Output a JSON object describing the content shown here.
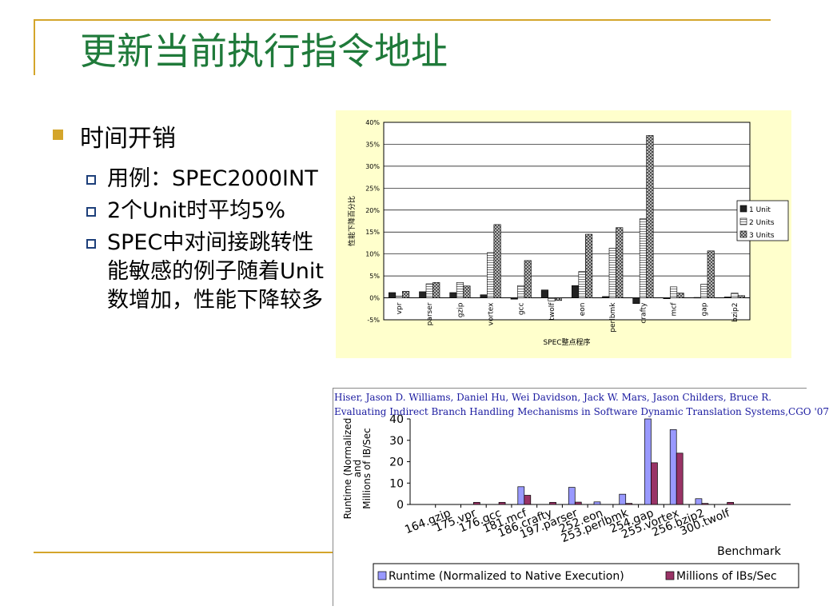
{
  "slide": {
    "title": "更新当前执行指令地址",
    "bullet_main": "时间开销",
    "sub_bullets": [
      "用例：SPEC2000INT",
      "2个Unit时平均5%",
      "SPEC中对间接跳转性能敏感的例子随着Unit数增加，性能下降较多"
    ],
    "citation": [
      "Hiser, Jason D.   Williams, Daniel   Hu, Wei   Davidson, Jack W.   Mars, Jason   Childers, Bruce R.",
      "Evaluating Indirect Branch Handling Mechanisms in Software Dynamic Translation Systems,CGO '07"
    ]
  },
  "colors": {
    "title": "#1f7a3a",
    "accent_rule": "#d4a52b",
    "runtime": "#9999ff",
    "ibs": "#993366"
  },
  "chart_data": [
    {
      "type": "bar",
      "ylabel": "性能下降百分比",
      "xlabel": "SPEC整点程序",
      "ylim": [
        -5,
        40
      ],
      "yticks": [
        "40%",
        "35%",
        "30%",
        "25%",
        "20%",
        "15%",
        "10%",
        "5%",
        "0%",
        "-5%"
      ],
      "categories": [
        "vpr",
        "parser",
        "gzip",
        "vortex",
        "gcc",
        "twolf",
        "eon",
        "perlbmk",
        "crafty",
        "mcf",
        "gap",
        "bzip2"
      ],
      "series": [
        {
          "name": "1 Unit",
          "values": [
            1.2,
            1.4,
            1.2,
            0.7,
            -0.3,
            1.8,
            2.8,
            0.3,
            -1.3,
            -0.2,
            0.1,
            0.2
          ]
        },
        {
          "name": "2 Units",
          "values": [
            0.4,
            3.2,
            3.5,
            10.3,
            2.8,
            -0.7,
            6.0,
            11.3,
            18.0,
            2.5,
            3.1,
            1.1
          ]
        },
        {
          "name": "3 Units",
          "values": [
            1.5,
            3.5,
            2.7,
            16.7,
            8.5,
            -0.6,
            14.5,
            16.0,
            37.0,
            1.1,
            10.7,
            0.5
          ]
        }
      ],
      "legend": "right"
    },
    {
      "type": "bar",
      "ylabel_lines": [
        "Runtime (Normalized",
        "and",
        "Millions of IB/Sec"
      ],
      "xlabel": "Benchmark",
      "ylim": [
        0,
        40
      ],
      "yticks": [
        "40",
        "30",
        "20",
        "10",
        "0"
      ],
      "categories": [
        "164.gzip",
        "175.vpr",
        "176.gcc",
        "181.mcf",
        "186.crafty",
        "197.parser",
        "252.eon",
        "253.perlbmk",
        "254.gap",
        "255.vortex",
        "256.bzip2",
        "300.twolf"
      ],
      "series": [
        {
          "name": "Runtime (Normalized to Native Execution)",
          "values": [
            0,
            0,
            0,
            8.3,
            0,
            8.0,
            1.2,
            4.8,
            40,
            35,
            2.7,
            0
          ]
        },
        {
          "name": "Millions of IBs/Sec",
          "values": [
            0,
            1.0,
            1.0,
            4.3,
            1.0,
            1.1,
            0,
            0.5,
            19.5,
            24,
            0.5,
            1.0
          ]
        }
      ],
      "legend": "bottom"
    }
  ]
}
